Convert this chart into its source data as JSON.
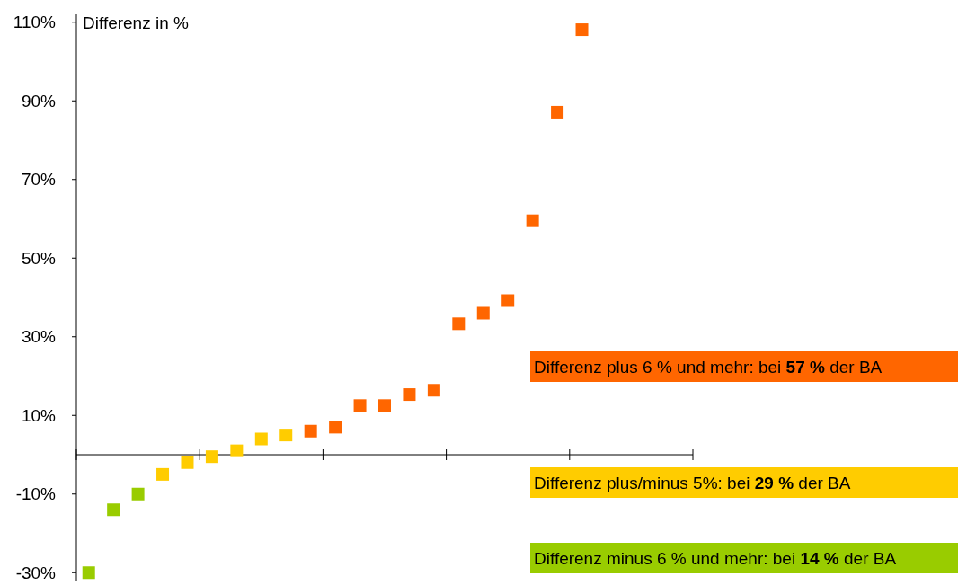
{
  "chart_data": {
    "type": "scatter",
    "ylabel": "Differenz in %",
    "marker": "square",
    "grid": false,
    "categories": [
      null,
      null,
      null,
      null,
      null,
      null,
      null,
      null,
      null,
      null,
      null,
      null,
      null,
      null,
      null,
      null,
      null,
      null,
      null,
      null,
      null,
      null,
      null,
      null,
      null
    ],
    "series": [
      {
        "color": "#99cc00",
        "values": [
          -30,
          -14,
          -10,
          null,
          null,
          null,
          null,
          null,
          null,
          null,
          null,
          null,
          null,
          null,
          null,
          null,
          null,
          null,
          null,
          null,
          null,
          null,
          null,
          null,
          null
        ]
      },
      {
        "color": "#ffcc00",
        "values": [
          null,
          null,
          null,
          -5,
          -2,
          -0.5,
          1,
          4,
          5,
          null,
          null,
          null,
          null,
          null,
          null,
          null,
          null,
          null,
          null,
          null,
          null,
          null,
          null,
          null,
          null
        ]
      },
      {
        "color": "#ff6600",
        "values": [
          null,
          null,
          null,
          null,
          null,
          null,
          null,
          null,
          null,
          6,
          7,
          12.5,
          12.5,
          15.3,
          16.4,
          33.3,
          36,
          39.2,
          59.5,
          87.1,
          108.1,
          null,
          null,
          null,
          null
        ]
      }
    ],
    "ylim": [
      -32,
      112
    ],
    "yticks": [
      {
        "value": 110,
        "label": "110%"
      },
      {
        "value": 90,
        "label": "90%"
      },
      {
        "value": 70,
        "label": "70%"
      },
      {
        "value": 50,
        "label": "50%"
      },
      {
        "value": 30,
        "label": "30%"
      },
      {
        "value": 10,
        "label": "10%"
      },
      {
        "value": -10,
        "label": "-10%"
      },
      {
        "value": -30,
        "label": "-30%"
      }
    ],
    "annotations": [
      "Differenz plus 6 % und mehr: bei 57 % der BA",
      "Differenz plus/minus 5%: bei 29 % der BA",
      "Differenz minus 6 % und mehr: bei 14 % der BA"
    ]
  }
}
